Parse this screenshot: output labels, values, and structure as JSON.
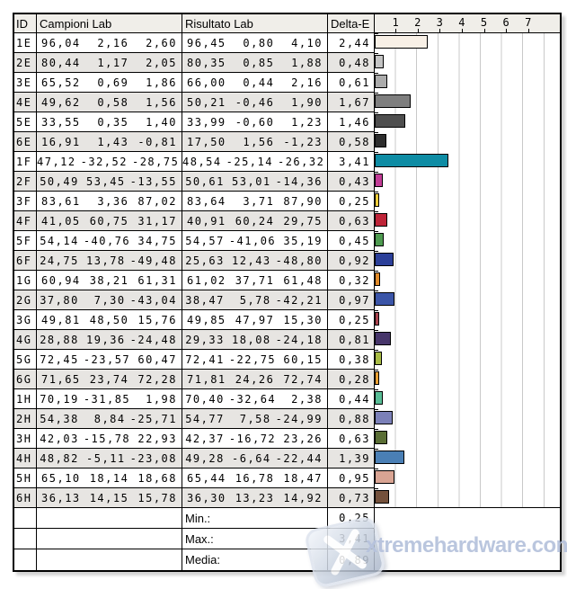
{
  "table": {
    "header": {
      "id": "ID",
      "campioni": "Campioni Lab",
      "risultato": "Risultato Lab",
      "delta": "Delta-E"
    },
    "scale_ticks": [
      "1",
      "2",
      "3",
      "4",
      "5",
      "6",
      "7"
    ],
    "rows": [
      {
        "id": "1E",
        "campioni": [
          "96,04",
          "2,16",
          "2,60"
        ],
        "risultato": [
          "96,45",
          "0,80",
          "4,10"
        ],
        "delta": "2,44",
        "delta_value": 2.44,
        "color": "#F8F0E6"
      },
      {
        "id": "2E",
        "campioni": [
          "80,44",
          "1,17",
          "2,05"
        ],
        "risultato": [
          "80,35",
          "0,85",
          "1,88"
        ],
        "delta": "0,48",
        "delta_value": 0.48,
        "color": "#C4C4C4"
      },
      {
        "id": "3E",
        "campioni": [
          "65,52",
          "0,69",
          "1,86"
        ],
        "risultato": [
          "66,00",
          "0,44",
          "2,16"
        ],
        "delta": "0,61",
        "delta_value": 0.61,
        "color": "#ABABAB"
      },
      {
        "id": "4E",
        "campioni": [
          "49,62",
          "0,58",
          "1,56"
        ],
        "risultato": [
          "50,21",
          "-0,46",
          "1,90"
        ],
        "delta": "1,67",
        "delta_value": 1.67,
        "color": "#7E7E7E"
      },
      {
        "id": "5E",
        "campioni": [
          "33,55",
          "0,35",
          "1,40"
        ],
        "risultato": [
          "33,99",
          "-0,60",
          "1,23"
        ],
        "delta": "1,46",
        "delta_value": 1.46,
        "color": "#4E4E4E"
      },
      {
        "id": "6E",
        "campioni": [
          "16,91",
          "1,43",
          "-0,81"
        ],
        "risultato": [
          "17,50",
          "1,56",
          "-1,23"
        ],
        "delta": "0,58",
        "delta_value": 0.58,
        "color": "#2D2D2D"
      },
      {
        "id": "1F",
        "campioni": [
          "47,12",
          "-32,52",
          "-28,75"
        ],
        "risultato": [
          "48,54",
          "-25,14",
          "-26,32"
        ],
        "delta": "3,41",
        "delta_value": 3.41,
        "color": "#0E8CA4"
      },
      {
        "id": "2F",
        "campioni": [
          "50,49",
          "53,45",
          "-13,55"
        ],
        "risultato": [
          "50,61",
          "53,01",
          "-14,36"
        ],
        "delta": "0,43",
        "delta_value": 0.43,
        "color": "#C23C96"
      },
      {
        "id": "3F",
        "campioni": [
          "83,61",
          "3,36",
          "87,02"
        ],
        "risultato": [
          "83,64",
          "3,71",
          "87,90"
        ],
        "delta": "0,25",
        "delta_value": 0.25,
        "color": "#EDCC39"
      },
      {
        "id": "4F",
        "campioni": [
          "41,05",
          "60,75",
          "31,17"
        ],
        "risultato": [
          "40,91",
          "60,24",
          "29,75"
        ],
        "delta": "0,63",
        "delta_value": 0.63,
        "color": "#BE2438"
      },
      {
        "id": "5F",
        "campioni": [
          "54,14",
          "-40,76",
          "34,75"
        ],
        "risultato": [
          "54,57",
          "-41,06",
          "35,19"
        ],
        "delta": "0,45",
        "delta_value": 0.45,
        "color": "#4E9B50"
      },
      {
        "id": "6F",
        "campioni": [
          "24,75",
          "13,78",
          "-49,48"
        ],
        "risultato": [
          "25,63",
          "12,43",
          "-48,80"
        ],
        "delta": "0,92",
        "delta_value": 0.92,
        "color": "#2B3F99"
      },
      {
        "id": "1G",
        "campioni": [
          "60,94",
          "38,21",
          "61,31"
        ],
        "risultato": [
          "61,02",
          "37,71",
          "61,48"
        ],
        "delta": "0,32",
        "delta_value": 0.32,
        "color": "#E08A28"
      },
      {
        "id": "2G",
        "campioni": [
          "37,80",
          "7,30",
          "-43,04"
        ],
        "risultato": [
          "38,47",
          "5,78",
          "-42,21"
        ],
        "delta": "0,97",
        "delta_value": 0.97,
        "color": "#3B55A8"
      },
      {
        "id": "3G",
        "campioni": [
          "49,81",
          "48,50",
          "15,76"
        ],
        "risultato": [
          "49,85",
          "47,97",
          "15,30"
        ],
        "delta": "0,25",
        "delta_value": 0.25,
        "color": "#A8434E"
      },
      {
        "id": "4G",
        "campioni": [
          "28,88",
          "19,36",
          "-24,48"
        ],
        "risultato": [
          "29,33",
          "18,08",
          "-24,18"
        ],
        "delta": "0,81",
        "delta_value": 0.81,
        "color": "#46356A"
      },
      {
        "id": "5G",
        "campioni": [
          "72,45",
          "-23,57",
          "60,47"
        ],
        "risultato": [
          "72,41",
          "-22,75",
          "60,15"
        ],
        "delta": "0,38",
        "delta_value": 0.38,
        "color": "#A9BC45"
      },
      {
        "id": "6G",
        "campioni": [
          "71,65",
          "23,74",
          "72,28"
        ],
        "risultato": [
          "71,81",
          "24,26",
          "72,74"
        ],
        "delta": "0,28",
        "delta_value": 0.28,
        "color": "#E9A033"
      },
      {
        "id": "1H",
        "campioni": [
          "70,19",
          "-31,85",
          "1,98"
        ],
        "risultato": [
          "70,40",
          "-32,64",
          "2,38"
        ],
        "delta": "0,44",
        "delta_value": 0.44,
        "color": "#58BD96"
      },
      {
        "id": "2H",
        "campioni": [
          "54,38",
          "8,84",
          "-25,71"
        ],
        "risultato": [
          "54,77",
          "7,58",
          "-24,99"
        ],
        "delta": "0,88",
        "delta_value": 0.88,
        "color": "#7B80B8"
      },
      {
        "id": "3H",
        "campioni": [
          "42,03",
          "-15,78",
          "22,93"
        ],
        "risultato": [
          "42,37",
          "-16,72",
          "23,26"
        ],
        "delta": "0,63",
        "delta_value": 0.63,
        "color": "#5A6E35"
      },
      {
        "id": "4H",
        "campioni": [
          "48,82",
          "-5,11",
          "-23,08"
        ],
        "risultato": [
          "49,28",
          "-6,64",
          "-22,44"
        ],
        "delta": "1,39",
        "delta_value": 1.39,
        "color": "#4A7FB5"
      },
      {
        "id": "5H",
        "campioni": [
          "65,10",
          "18,14",
          "18,68"
        ],
        "risultato": [
          "65,44",
          "16,78",
          "18,47"
        ],
        "delta": "0,95",
        "delta_value": 0.95,
        "color": "#D9A493"
      },
      {
        "id": "6H",
        "campioni": [
          "36,13",
          "14,15",
          "15,78"
        ],
        "risultato": [
          "36,30",
          "13,23",
          "14,92"
        ],
        "delta": "0,73",
        "delta_value": 0.73,
        "color": "#74513C"
      }
    ],
    "summary": [
      {
        "label": "Min.:",
        "value": "0,25"
      },
      {
        "label": "Max.:",
        "value": "3,41"
      },
      {
        "label": "Media:",
        "value": "0,89"
      }
    ]
  },
  "chart_data": {
    "type": "bar",
    "categories": [
      "1E",
      "2E",
      "3E",
      "4E",
      "5E",
      "6E",
      "1F",
      "2F",
      "3F",
      "4F",
      "5F",
      "6F",
      "1G",
      "2G",
      "3G",
      "4G",
      "5G",
      "6G",
      "1H",
      "2H",
      "3H",
      "4H",
      "5H",
      "6H"
    ],
    "values": [
      2.44,
      0.48,
      0.61,
      1.67,
      1.46,
      0.58,
      3.41,
      0.43,
      0.25,
      0.63,
      0.45,
      0.92,
      0.32,
      0.97,
      0.25,
      0.81,
      0.38,
      0.28,
      0.44,
      0.88,
      0.63,
      1.39,
      0.95,
      0.73
    ],
    "xlabel": "Delta-E",
    "xlim": [
      0,
      8
    ],
    "tick_labels": [
      "1",
      "2",
      "3",
      "4",
      "5",
      "6",
      "7"
    ],
    "grid": "vertical",
    "bar_colors": [
      "#F8F0E6",
      "#C4C4C4",
      "#ABABAB",
      "#7E7E7E",
      "#4E4E4E",
      "#2D2D2D",
      "#0E8CA4",
      "#C23C96",
      "#EDCC39",
      "#BE2438",
      "#4E9B50",
      "#2B3F99",
      "#E08A28",
      "#3B55A8",
      "#A8434E",
      "#46356A",
      "#A9BC45",
      "#E9A033",
      "#58BD96",
      "#7B80B8",
      "#5A6E35",
      "#4A7FB5",
      "#D9A493",
      "#74513C"
    ]
  },
  "watermark": {
    "text": "xtremehardware.com",
    "text_color": "#b7c3dd",
    "logo_icon": "x-logo"
  }
}
